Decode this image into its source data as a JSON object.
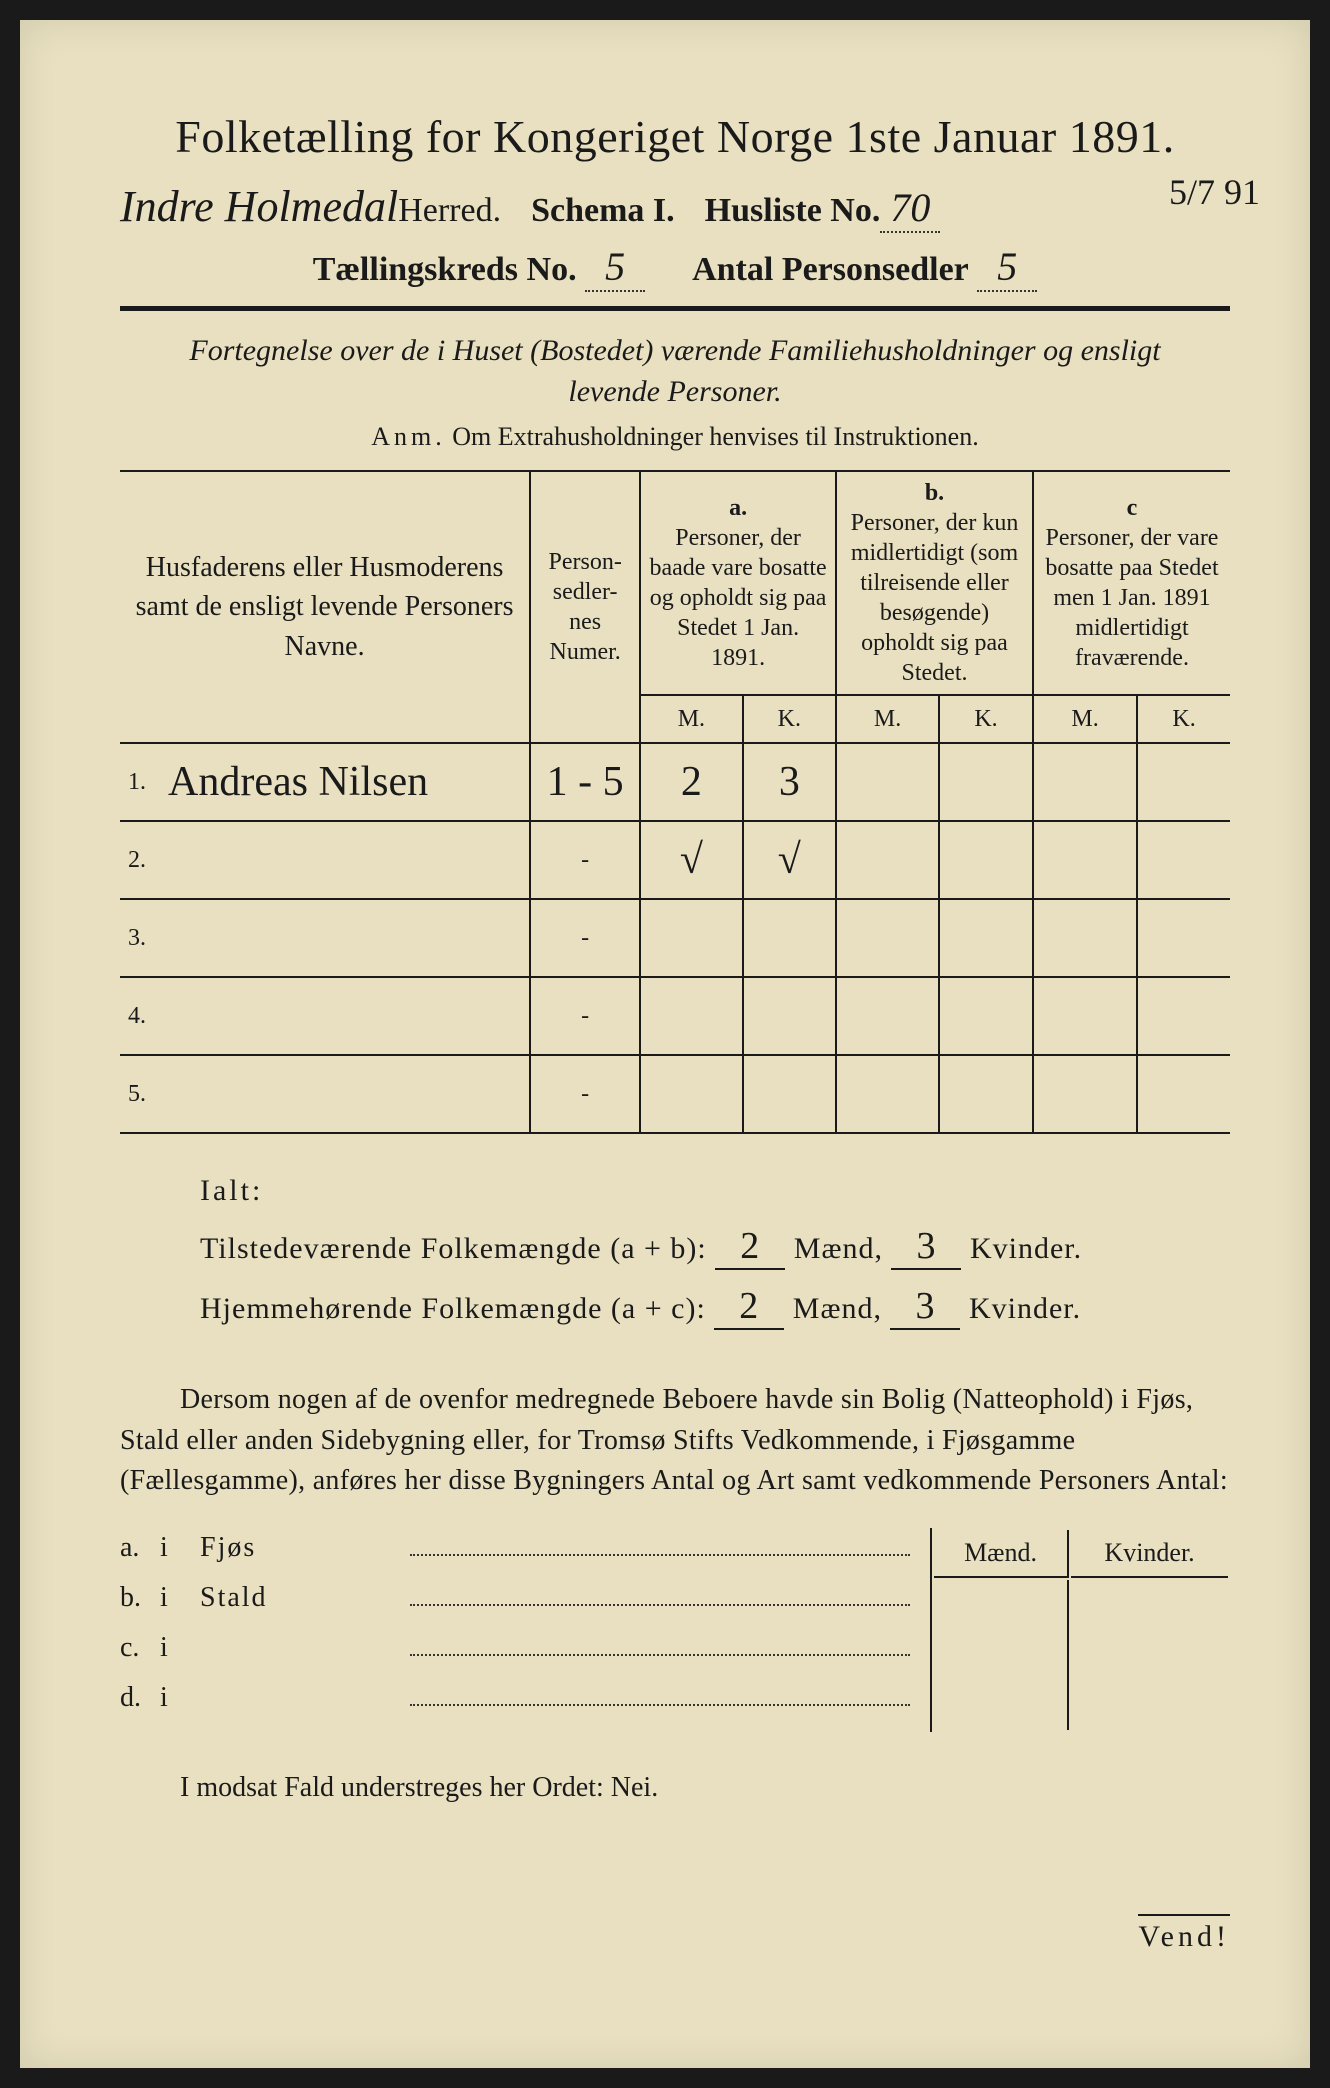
{
  "title": "Folketælling for Kongeriget Norge 1ste Januar 1891.",
  "herred_handwritten": "Indre Holmedal",
  "herred_label": "Herred.",
  "schema_label": "Schema I.",
  "husliste_label": "Husliste No.",
  "husliste_no": "70",
  "margin_date": "5/7 91",
  "kreds_label": "Tællingskreds No.",
  "kreds_no": "5",
  "antal_label": "Antal Personsedler",
  "antal_no": "5",
  "subtitle": "Fortegnelse over de i Huset (Bostedet) værende Familiehusholdninger og ensligt levende Personer.",
  "anm_label": "Anm.",
  "anm_text": "Om Extrahusholdninger henvises til Instruktionen.",
  "table": {
    "head_names": "Husfaderens eller Husmoderens samt de ensligt levende Personers Navne.",
    "head_numer": "Person-\nsedler-\nnes\nNumer.",
    "col_a_letter": "a.",
    "col_a": "Personer, der baade vare bosatte og opholdt sig paa Stedet 1 Jan. 1891.",
    "col_b_letter": "b.",
    "col_b": "Personer, der kun midlertidigt (som tilreisende eller besøgende) opholdt sig paa Stedet.",
    "col_c_letter": "c",
    "col_c": "Personer, der vare bosatte paa Stedet men 1 Jan. 1891 midlertidigt fraværende.",
    "M": "M.",
    "K": "K.",
    "rows": [
      {
        "n": "1.",
        "name": "Andreas Nilsen",
        "numer": "1 - 5",
        "aM": "2",
        "aK": "3",
        "bM": "",
        "bK": "",
        "cM": "",
        "cK": ""
      },
      {
        "n": "2.",
        "name": "",
        "numer": "-",
        "aM": "√",
        "aK": "√",
        "bM": "",
        "bK": "",
        "cM": "",
        "cK": ""
      },
      {
        "n": "3.",
        "name": "",
        "numer": "-",
        "aM": "",
        "aK": "",
        "bM": "",
        "bK": "",
        "cM": "",
        "cK": ""
      },
      {
        "n": "4.",
        "name": "",
        "numer": "-",
        "aM": "",
        "aK": "",
        "bM": "",
        "bK": "",
        "cM": "",
        "cK": ""
      },
      {
        "n": "5.",
        "name": "",
        "numer": "-",
        "aM": "",
        "aK": "",
        "bM": "",
        "bK": "",
        "cM": "",
        "cK": ""
      }
    ]
  },
  "ialt": "Ialt:",
  "tilstede_label": "Tilstedeværende Folkemængde (a + b):",
  "hjemme_label": "Hjemmehørende Folkemængde (a + c):",
  "maend": "Mænd,",
  "kvinder": "Kvinder.",
  "tilstede_m": "2",
  "tilstede_k": "3",
  "hjemme_m": "2",
  "hjemme_k": "3",
  "paragraph": "Dersom nogen af de ovenfor medregnede Beboere havde sin Bolig (Natteophold) i Fjøs, Stald eller anden Sidebygning eller, for Tromsø Stifts Vedkommende, i Fjøsgamme (Fællesgamme), anføres her disse Bygningers Antal og Art samt vedkommende Personers Antal:",
  "ob_header_m": "Mænd.",
  "ob_header_k": "Kvinder.",
  "ob_lines": [
    {
      "letter": "a.",
      "i": "i",
      "label": "Fjøs"
    },
    {
      "letter": "b.",
      "i": "i",
      "label": "Stald"
    },
    {
      "letter": "c.",
      "i": "i",
      "label": ""
    },
    {
      "letter": "d.",
      "i": "i",
      "label": ""
    }
  ],
  "final": "I modsat Fald understreges her Ordet: Nei.",
  "vendl": "Vend!"
}
